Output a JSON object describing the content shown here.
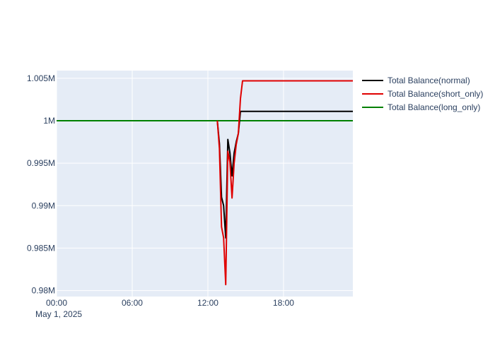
{
  "chart_data": {
    "type": "line",
    "title": "",
    "xlabel": "",
    "ylabel": "",
    "x_axis": {
      "range": [
        "2025-05-01T00:00",
        "2025-05-01T23:30"
      ],
      "ticks": [
        "2025-05-01T00:00",
        "2025-05-01T06:00",
        "2025-05-01T12:00",
        "2025-05-01T18:00"
      ],
      "tick_labels": [
        "00:00",
        "06:00",
        "12:00",
        "18:00"
      ],
      "date_label": "May 1, 2025"
    },
    "y_axis": {
      "range": [
        979300,
        1005900
      ],
      "ticks": [
        980000,
        985000,
        990000,
        995000,
        1000000,
        1005000
      ],
      "tick_labels": [
        "0.98M",
        "0.985M",
        "0.99M",
        "0.995M",
        "1M",
        "1.005M"
      ]
    },
    "grid": true,
    "legend": {
      "position": "right-top"
    },
    "colors": {
      "plot_bg": "#e5ecf6",
      "grid": "#ffffff",
      "text": "#2a3f5f"
    },
    "series": [
      {
        "name": "Total Balance(normal)",
        "color": "#000000",
        "points": [
          [
            "2025-05-01T12:45",
            1000000
          ],
          [
            "2025-05-01T12:55",
            997300
          ],
          [
            "2025-05-01T13:05",
            991000
          ],
          [
            "2025-05-01T13:15",
            990000
          ],
          [
            "2025-05-01T13:25",
            986200
          ],
          [
            "2025-05-01T13:35",
            997800
          ],
          [
            "2025-05-01T13:45",
            996200
          ],
          [
            "2025-05-01T13:55",
            993500
          ],
          [
            "2025-05-01T14:05",
            996200
          ],
          [
            "2025-05-01T14:15",
            997500
          ],
          [
            "2025-05-01T14:25",
            998500
          ],
          [
            "2025-05-01T14:35",
            1001100
          ],
          [
            "2025-05-01T23:30",
            1001100
          ]
        ]
      },
      {
        "name": "Total Balance(short_only)",
        "color": "#e00000",
        "points": [
          [
            "2025-05-01T12:45",
            1000000
          ],
          [
            "2025-05-01T12:55",
            996700
          ],
          [
            "2025-05-01T13:05",
            987500
          ],
          [
            "2025-05-01T13:15",
            986200
          ],
          [
            "2025-05-01T13:25",
            980700
          ],
          [
            "2025-05-01T13:35",
            996400
          ],
          [
            "2025-05-01T13:45",
            995100
          ],
          [
            "2025-05-01T13:55",
            990900
          ],
          [
            "2025-05-01T14:05",
            995000
          ],
          [
            "2025-05-01T14:15",
            997200
          ],
          [
            "2025-05-01T14:25",
            998500
          ],
          [
            "2025-05-01T14:35",
            1002600
          ],
          [
            "2025-05-01T14:45",
            1004700
          ],
          [
            "2025-05-01T23:30",
            1004700
          ]
        ]
      },
      {
        "name": "Total Balance(long_only)",
        "color": "#008000",
        "points": [
          [
            "2025-05-01T00:00",
            1000000
          ],
          [
            "2025-05-01T23:30",
            1000000
          ]
        ]
      }
    ]
  }
}
